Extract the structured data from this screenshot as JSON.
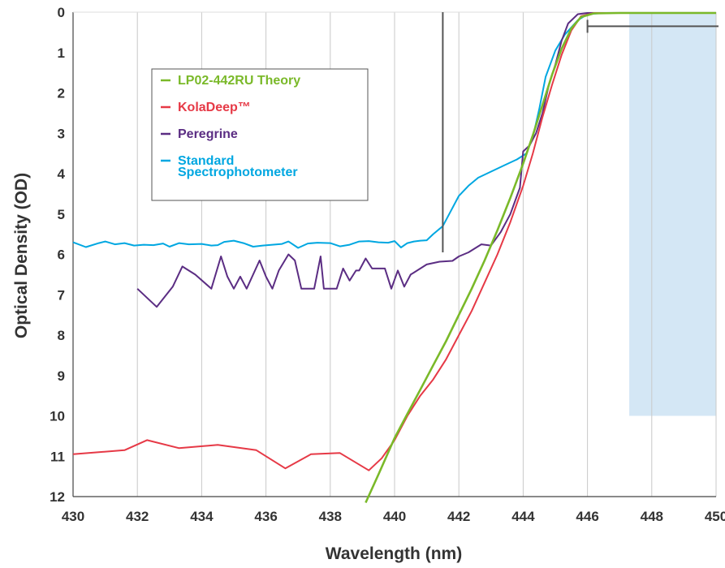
{
  "chart_data": {
    "type": "line",
    "xlabel": "Wavelength (nm)",
    "ylabel": "Optical Density (OD)",
    "xlim": [
      430,
      450
    ],
    "ylim": [
      12,
      0
    ],
    "y_axis_inverted": true,
    "grid": "vertical gridlines",
    "legend_position": "upper-left (boxed)",
    "x_ticks": [
      "430",
      "432",
      "434",
      "436",
      "438",
      "440",
      "442",
      "444",
      "446",
      "448",
      "450"
    ],
    "y_ticks": [
      "0",
      "1",
      "2",
      "3",
      "4",
      "5",
      "6",
      "7",
      "8",
      "9",
      "10",
      "11",
      "12"
    ],
    "shaded_region": {
      "x": [
        447.3,
        450
      ],
      "y": [
        0,
        10
      ],
      "color": "#d4e7f5"
    },
    "markers": {
      "vertical_line": {
        "x": 441.5,
        "y_from": 0,
        "y_to": 5.95,
        "color": "#555555"
      },
      "horizontal_bracket": {
        "y": 0.35,
        "x_from": 446,
        "x_to": 450.1,
        "color": "#555555"
      }
    },
    "series": [
      {
        "name": "Standard Spectrophotometer",
        "legend_lines": [
          "Standard",
          "Spectrophotometer"
        ],
        "color": "#00a7e1",
        "points": [
          [
            430,
            5.7
          ],
          [
            430.4,
            5.82
          ],
          [
            430.8,
            5.72
          ],
          [
            431,
            5.68
          ],
          [
            431.3,
            5.75
          ],
          [
            431.6,
            5.72
          ],
          [
            431.9,
            5.78
          ],
          [
            432.2,
            5.76
          ],
          [
            432.5,
            5.77
          ],
          [
            432.8,
            5.73
          ],
          [
            433,
            5.81
          ],
          [
            433.3,
            5.72
          ],
          [
            433.6,
            5.75
          ],
          [
            434,
            5.74
          ],
          [
            434.3,
            5.78
          ],
          [
            434.5,
            5.77
          ],
          [
            434.7,
            5.69
          ],
          [
            435,
            5.66
          ],
          [
            435.3,
            5.72
          ],
          [
            435.6,
            5.81
          ],
          [
            435.9,
            5.78
          ],
          [
            436.2,
            5.76
          ],
          [
            436.5,
            5.74
          ],
          [
            436.7,
            5.68
          ],
          [
            437,
            5.84
          ],
          [
            437.3,
            5.73
          ],
          [
            437.6,
            5.71
          ],
          [
            438,
            5.72
          ],
          [
            438.3,
            5.8
          ],
          [
            438.6,
            5.76
          ],
          [
            438.9,
            5.68
          ],
          [
            439.2,
            5.67
          ],
          [
            439.5,
            5.7
          ],
          [
            439.8,
            5.71
          ],
          [
            440,
            5.67
          ],
          [
            440.2,
            5.83
          ],
          [
            440.4,
            5.72
          ],
          [
            440.6,
            5.68
          ],
          [
            440.8,
            5.66
          ],
          [
            441,
            5.65
          ],
          [
            441.2,
            5.5
          ],
          [
            441.5,
            5.3
          ],
          [
            441.7,
            5.0
          ],
          [
            442,
            4.55
          ],
          [
            442.3,
            4.3
          ],
          [
            442.6,
            4.1
          ],
          [
            443,
            3.95
          ],
          [
            443.4,
            3.8
          ],
          [
            443.8,
            3.65
          ],
          [
            444.1,
            3.5
          ],
          [
            444.3,
            3.1
          ],
          [
            444.5,
            2.4
          ],
          [
            444.7,
            1.6
          ],
          [
            445,
            0.95
          ],
          [
            445.3,
            0.55
          ],
          [
            445.7,
            0.2
          ],
          [
            446,
            0.05
          ],
          [
            446.5,
            0.02
          ],
          [
            450,
            0.02
          ]
        ]
      },
      {
        "name": "Peregrine",
        "color": "#5b2d83",
        "points": [
          [
            432,
            6.85
          ],
          [
            432.6,
            7.3
          ],
          [
            433.1,
            6.8
          ],
          [
            433.4,
            6.3
          ],
          [
            433.8,
            6.5
          ],
          [
            434.3,
            6.85
          ],
          [
            434.6,
            6.05
          ],
          [
            434.8,
            6.55
          ],
          [
            435,
            6.85
          ],
          [
            435.2,
            6.55
          ],
          [
            435.4,
            6.85
          ],
          [
            435.8,
            6.15
          ],
          [
            436,
            6.55
          ],
          [
            436.2,
            6.85
          ],
          [
            436.4,
            6.4
          ],
          [
            436.7,
            6.0
          ],
          [
            436.9,
            6.15
          ],
          [
            437.1,
            6.85
          ],
          [
            437.5,
            6.85
          ],
          [
            437.7,
            6.05
          ],
          [
            437.8,
            6.85
          ],
          [
            438.2,
            6.85
          ],
          [
            438.4,
            6.35
          ],
          [
            438.6,
            6.65
          ],
          [
            438.8,
            6.4
          ],
          [
            438.9,
            6.4
          ],
          [
            439.1,
            6.1
          ],
          [
            439.3,
            6.35
          ],
          [
            439.7,
            6.35
          ],
          [
            439.9,
            6.85
          ],
          [
            440.1,
            6.4
          ],
          [
            440.3,
            6.8
          ],
          [
            440.5,
            6.5
          ],
          [
            441,
            6.25
          ],
          [
            441.4,
            6.18
          ],
          [
            441.8,
            6.16
          ],
          [
            442,
            6.05
          ],
          [
            442.3,
            5.95
          ],
          [
            442.7,
            5.75
          ],
          [
            443,
            5.78
          ],
          [
            443.3,
            5.45
          ],
          [
            443.6,
            5.0
          ],
          [
            443.9,
            4.35
          ],
          [
            444,
            3.45
          ],
          [
            444.2,
            3.3
          ],
          [
            444.4,
            3.0
          ],
          [
            444.6,
            2.5
          ],
          [
            444.8,
            1.8
          ],
          [
            445,
            1.3
          ],
          [
            445.2,
            0.7
          ],
          [
            445.4,
            0.28
          ],
          [
            445.7,
            0.05
          ],
          [
            446,
            0.02
          ],
          [
            450,
            0.02
          ]
        ]
      },
      {
        "name": "KolaDeep™",
        "color": "#e63946",
        "points": [
          [
            430,
            10.95
          ],
          [
            430.8,
            10.9
          ],
          [
            431.6,
            10.85
          ],
          [
            432.3,
            10.6
          ],
          [
            433.3,
            10.8
          ],
          [
            434.5,
            10.72
          ],
          [
            435.7,
            10.85
          ],
          [
            436.6,
            11.3
          ],
          [
            437.4,
            10.95
          ],
          [
            438.3,
            10.92
          ],
          [
            439.2,
            11.35
          ],
          [
            439.6,
            11.05
          ],
          [
            440,
            10.6
          ],
          [
            440.4,
            10.0
          ],
          [
            440.8,
            9.5
          ],
          [
            441.2,
            9.1
          ],
          [
            441.6,
            8.6
          ],
          [
            442,
            8.0
          ],
          [
            442.4,
            7.4
          ],
          [
            442.8,
            6.7
          ],
          [
            443.2,
            6.0
          ],
          [
            443.6,
            5.2
          ],
          [
            444,
            4.3
          ],
          [
            444.3,
            3.5
          ],
          [
            444.6,
            2.6
          ],
          [
            444.9,
            1.8
          ],
          [
            445.2,
            1.05
          ],
          [
            445.5,
            0.45
          ],
          [
            445.8,
            0.1
          ],
          [
            446.2,
            0.02
          ],
          [
            450,
            0.02
          ]
        ]
      },
      {
        "name": "LP02-442RU Theory",
        "color": "#7ab929",
        "points": [
          [
            439.1,
            12.15
          ],
          [
            439.5,
            11.45
          ],
          [
            440,
            10.55
          ],
          [
            440.4,
            9.95
          ],
          [
            440.8,
            9.35
          ],
          [
            441.2,
            8.75
          ],
          [
            441.6,
            8.15
          ],
          [
            442,
            7.5
          ],
          [
            442.4,
            6.85
          ],
          [
            442.8,
            6.15
          ],
          [
            443.2,
            5.4
          ],
          [
            443.6,
            4.6
          ],
          [
            444,
            3.75
          ],
          [
            444.3,
            3.05
          ],
          [
            444.6,
            2.3
          ],
          [
            444.9,
            1.55
          ],
          [
            445.2,
            0.9
          ],
          [
            445.5,
            0.4
          ],
          [
            445.8,
            0.12
          ],
          [
            446.2,
            0.03
          ],
          [
            447,
            0.02
          ],
          [
            450,
            0.02
          ]
        ]
      }
    ]
  }
}
